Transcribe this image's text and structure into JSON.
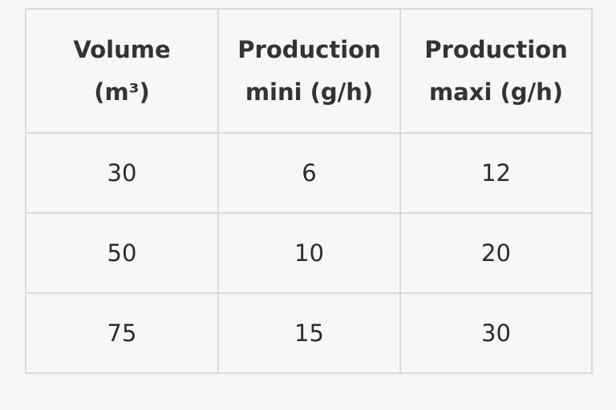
{
  "table": {
    "header": [
      [
        "Volume",
        "(m³)"
      ],
      [
        "Production",
        "mini (g/h)"
      ],
      [
        "Production",
        "maxi (g/h)"
      ]
    ],
    "rows": [
      [
        30,
        6,
        12
      ],
      [
        50,
        10,
        20
      ],
      [
        75,
        15,
        30
      ]
    ]
  }
}
